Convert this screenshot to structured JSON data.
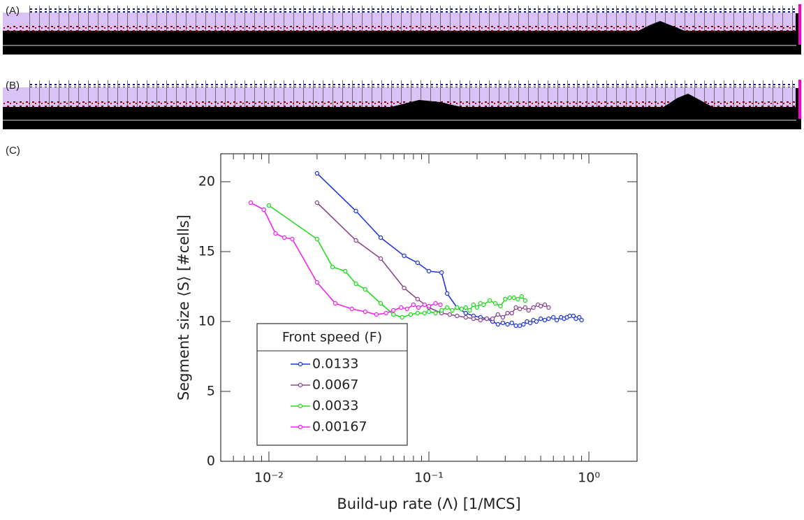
{
  "panel_labels": [
    "(A)",
    "(B)",
    "(C)"
  ],
  "chart_data": {
    "type": "line",
    "xlabel": "Build-up rate (Λ) [1/MCS]",
    "ylabel": "Segment size ⟨S⟩ [#cells]",
    "xscale": "log",
    "xlim": [
      0.005,
      2
    ],
    "xticks": [
      {
        "value": 0.01,
        "label": "10⁻²"
      },
      {
        "value": 0.1,
        "label": "10⁻¹"
      },
      {
        "value": 1,
        "label": "10⁰"
      }
    ],
    "xminorticks": [
      0.006,
      0.007,
      0.008,
      0.009,
      0.02,
      0.03,
      0.04,
      0.05,
      0.06,
      0.07,
      0.08,
      0.09,
      0.2,
      0.3,
      0.4,
      0.5,
      0.6,
      0.7,
      0.8,
      0.9,
      2
    ],
    "ylim": [
      0,
      22
    ],
    "yticks": [
      0,
      5,
      10,
      15,
      20
    ],
    "legend_title": "Front speed (F)",
    "legend_loc": "lower left",
    "series": [
      {
        "name": "0.0133",
        "color": "#2239d6",
        "x": [
          0.02,
          0.035,
          0.05,
          0.07,
          0.085,
          0.1,
          0.12,
          0.13,
          0.15,
          0.17,
          0.19,
          0.21,
          0.23,
          0.25,
          0.27,
          0.29,
          0.31,
          0.33,
          0.35,
          0.37,
          0.39,
          0.41,
          0.43,
          0.45,
          0.47,
          0.5,
          0.53,
          0.56,
          0.6,
          0.63,
          0.67,
          0.7,
          0.73,
          0.76,
          0.8,
          0.83,
          0.87,
          0.9
        ],
        "values": [
          20.6,
          17.9,
          16.0,
          14.7,
          14.2,
          13.6,
          13.5,
          12.0,
          11.0,
          10.6,
          10.4,
          10.3,
          10.2,
          10.0,
          9.8,
          9.9,
          9.8,
          9.9,
          9.7,
          9.7,
          9.8,
          10.0,
          9.9,
          10.1,
          10.0,
          10.2,
          10.1,
          10.2,
          10.3,
          10.1,
          10.3,
          10.2,
          10.3,
          10.4,
          10.4,
          10.2,
          10.3,
          10.1
        ]
      },
      {
        "name": "0.0067",
        "color": "#8a4a8e",
        "x": [
          0.02,
          0.035,
          0.05,
          0.07,
          0.085,
          0.1,
          0.12,
          0.135,
          0.15,
          0.17,
          0.19,
          0.21,
          0.23,
          0.25,
          0.27,
          0.29,
          0.31,
          0.33,
          0.35,
          0.37,
          0.4,
          0.42,
          0.45,
          0.48,
          0.5,
          0.53,
          0.56
        ],
        "values": [
          18.5,
          15.8,
          14.5,
          12.4,
          11.6,
          11.0,
          10.6,
          10.5,
          10.4,
          10.3,
          10.2,
          10.1,
          10.2,
          10.2,
          10.5,
          10.3,
          10.6,
          10.6,
          11.0,
          10.9,
          11.0,
          10.8,
          11.0,
          11.2,
          11.1,
          11.2,
          11.0
        ]
      },
      {
        "name": "0.0033",
        "color": "#22dd22",
        "x": [
          0.01,
          0.02,
          0.025,
          0.03,
          0.035,
          0.04,
          0.05,
          0.06,
          0.068,
          0.077,
          0.085,
          0.094,
          0.1,
          0.11,
          0.12,
          0.13,
          0.14,
          0.15,
          0.16,
          0.17,
          0.18,
          0.19,
          0.2,
          0.21,
          0.22,
          0.24,
          0.26,
          0.28,
          0.3,
          0.32,
          0.34,
          0.36,
          0.38,
          0.4
        ],
        "values": [
          18.3,
          15.9,
          13.9,
          13.6,
          12.7,
          12.3,
          11.3,
          10.5,
          10.3,
          10.5,
          10.6,
          10.6,
          10.7,
          10.6,
          10.8,
          11.0,
          10.8,
          11.0,
          10.9,
          11.0,
          10.8,
          11.2,
          11.0,
          11.3,
          11.2,
          11.5,
          11.3,
          11.1,
          11.6,
          11.7,
          11.7,
          11.6,
          11.8,
          11.5
        ]
      },
      {
        "name": "0.00167",
        "color": "#f026f0",
        "x": [
          0.0077,
          0.0093,
          0.011,
          0.0125,
          0.014,
          0.02,
          0.026,
          0.033,
          0.04,
          0.047,
          0.054,
          0.06,
          0.067,
          0.073,
          0.08,
          0.086,
          0.094,
          0.1,
          0.11,
          0.118
        ],
        "values": [
          18.5,
          18.0,
          16.3,
          16.0,
          15.9,
          12.8,
          11.3,
          10.9,
          10.7,
          10.5,
          10.6,
          10.8,
          11.0,
          10.9,
          11.2,
          11.0,
          11.2,
          11.1,
          11.3,
          11.2
        ]
      }
    ]
  }
}
